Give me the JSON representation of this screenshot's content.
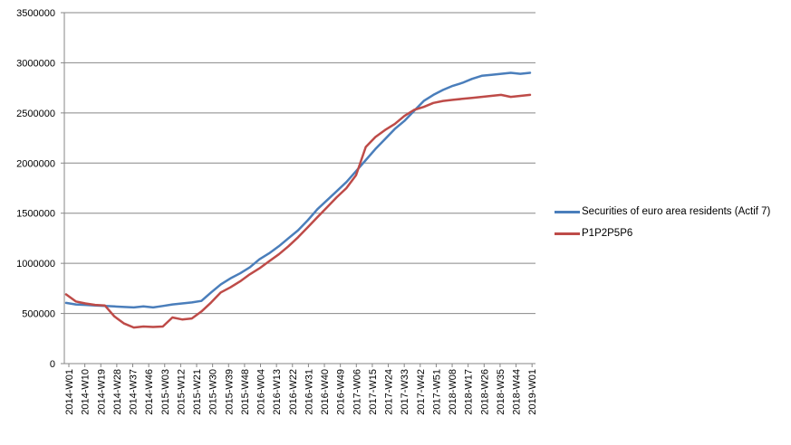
{
  "chart_data": {
    "type": "line",
    "title": "",
    "xlabel": "",
    "ylabel": "",
    "ylim": [
      0,
      3500000
    ],
    "yticks": [
      "0",
      "500000",
      "1000000",
      "1500000",
      "2000000",
      "2500000",
      "3000000",
      "3500000"
    ],
    "x_tick_labels": [
      "2014-W01",
      "2014-W10",
      "2014-W19",
      "2014-W28",
      "2014-W37",
      "2014-W46",
      "2015-W03",
      "2015-W12",
      "2015-W21",
      "2015-W30",
      "2015-W39",
      "2015-W48",
      "2016-W04",
      "2016-W13",
      "2016-W22",
      "2016-W31",
      "2016-W40",
      "2016-W49",
      "2017-W06",
      "2017-W15",
      "2017-W24",
      "2017-W33",
      "2017-W42",
      "2017-W51",
      "2018-W08",
      "2018-W17",
      "2018-W26",
      "2018-W35",
      "2018-W44",
      "2019-W01"
    ],
    "grid": "horizontal",
    "legend_position": "right",
    "series": [
      {
        "name": "Securities of euro area residents (Actif 7)",
        "color": "#4a7ebb",
        "values": [
          605000,
          590000,
          585000,
          580000,
          575000,
          570000,
          565000,
          560000,
          570000,
          560000,
          575000,
          590000,
          600000,
          610000,
          625000,
          710000,
          790000,
          850000,
          900000,
          960000,
          1040000,
          1100000,
          1170000,
          1250000,
          1330000,
          1430000,
          1540000,
          1630000,
          1720000,
          1810000,
          1920000,
          2030000,
          2140000,
          2240000,
          2340000,
          2420000,
          2520000,
          2620000,
          2680000,
          2730000,
          2770000,
          2800000,
          2840000,
          2870000,
          2880000,
          2890000,
          2900000,
          2890000,
          2900000
        ]
      },
      {
        "name": "P1P2P5P6",
        "color": "#be4b48",
        "values": [
          690000,
          620000,
          600000,
          585000,
          580000,
          470000,
          400000,
          360000,
          370000,
          365000,
          370000,
          460000,
          440000,
          450000,
          520000,
          610000,
          710000,
          760000,
          820000,
          890000,
          950000,
          1020000,
          1090000,
          1170000,
          1260000,
          1360000,
          1460000,
          1560000,
          1660000,
          1750000,
          1880000,
          2160000,
          2260000,
          2330000,
          2390000,
          2470000,
          2530000,
          2560000,
          2600000,
          2620000,
          2630000,
          2640000,
          2650000,
          2660000,
          2670000,
          2680000,
          2660000,
          2670000,
          2680000
        ]
      }
    ]
  }
}
